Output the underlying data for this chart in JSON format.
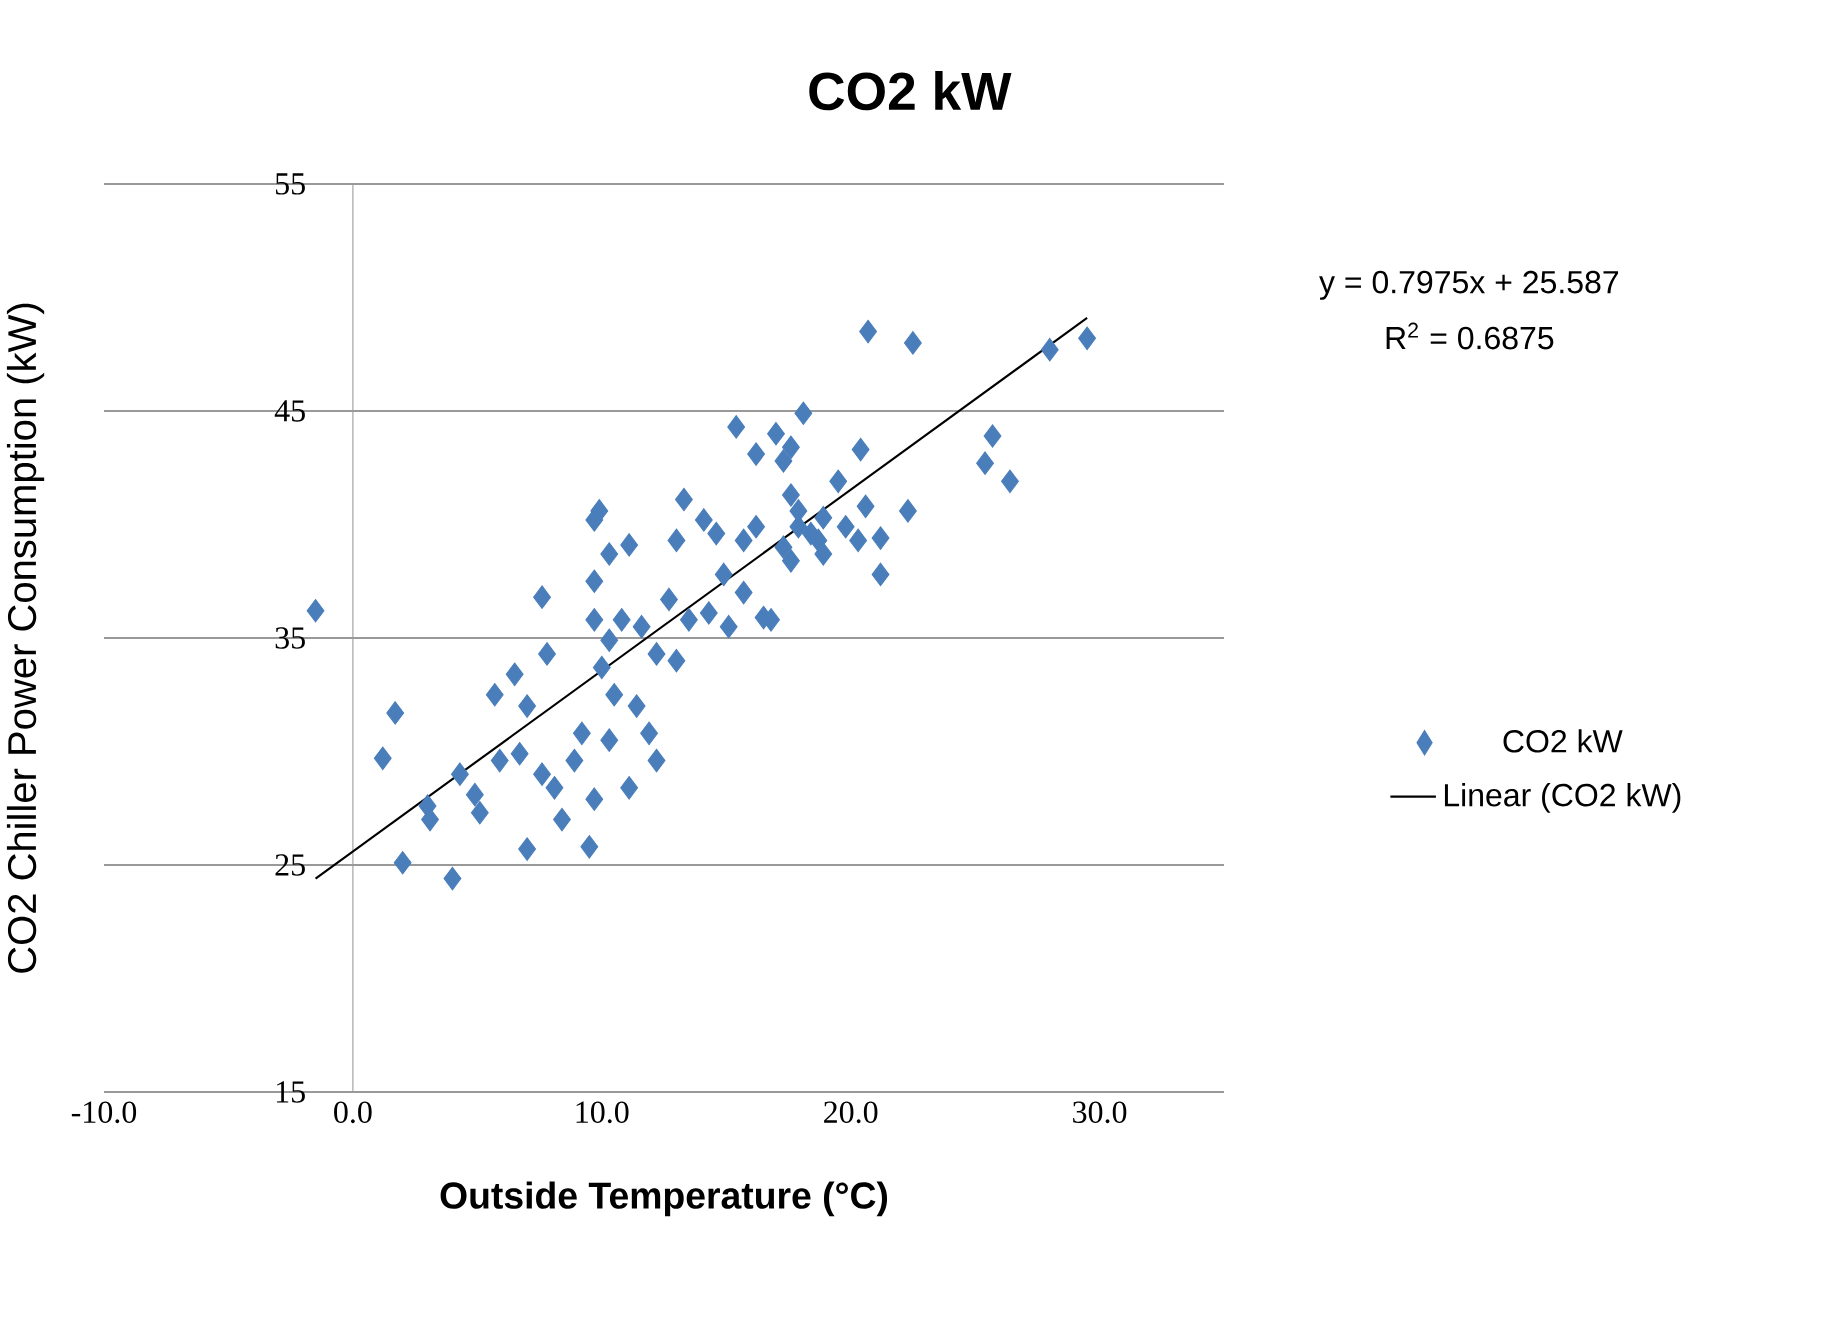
{
  "chart_data": {
    "type": "scatter",
    "title": "CO2 kW",
    "xlabel": "Outside Temperature (°C)",
    "ylabel": "CO2 Chiller Power Consumption (kW)",
    "xlim": [
      -10,
      35
    ],
    "ylim": [
      15,
      55
    ],
    "xticks": [
      {
        "value": -10,
        "label": "-10.0"
      },
      {
        "value": 0,
        "label": "0.0"
      },
      {
        "value": 10,
        "label": "10.0"
      },
      {
        "value": 20,
        "label": "20.0"
      },
      {
        "value": 30,
        "label": "30.0"
      }
    ],
    "yticks": [
      15,
      25,
      35,
      45,
      55
    ],
    "grid": "y",
    "legend": "right",
    "marker": "diamond",
    "annotations": [
      "y = 0.7975x + 25.587",
      "R$^{2}$ = 0.6875"
    ],
    "series": [
      {
        "name": "CO2 kW",
        "color": "#4a7ebb",
        "x": [
          -1.5,
          1.2,
          1.7,
          2.0,
          3.0,
          3.1,
          4.0,
          4.3,
          4.9,
          5.1,
          5.7,
          5.9,
          6.5,
          6.7,
          7.0,
          7.0,
          7.6,
          7.6,
          7.8,
          8.1,
          8.4,
          8.9,
          9.2,
          9.5,
          9.7,
          9.7,
          9.7,
          9.7,
          9.9,
          10.0,
          10.3,
          10.3,
          10.3,
          10.5,
          10.8,
          11.1,
          11.1,
          11.4,
          11.6,
          11.9,
          12.2,
          12.2,
          12.7,
          13.0,
          13.0,
          13.3,
          13.5,
          14.1,
          14.3,
          14.6,
          14.9,
          15.1,
          15.4,
          15.7,
          15.7,
          16.2,
          16.2,
          16.5,
          16.8,
          17.0,
          17.3,
          17.3,
          17.6,
          17.6,
          17.6,
          17.9,
          17.9,
          18.1,
          18.4,
          18.7,
          18.9,
          18.9,
          19.5,
          19.8,
          20.3,
          20.4,
          20.6,
          20.7,
          21.2,
          21.2,
          22.3,
          22.5,
          25.4,
          25.7,
          26.4,
          28.0,
          29.5
        ],
        "values": [
          36.2,
          29.7,
          31.7,
          25.1,
          27.6,
          27.0,
          24.4,
          29.0,
          28.1,
          27.3,
          32.5,
          29.6,
          33.4,
          29.9,
          32.0,
          25.7,
          36.8,
          29.0,
          34.3,
          28.4,
          27.0,
          29.6,
          30.8,
          25.8,
          27.9,
          35.8,
          37.5,
          40.2,
          40.6,
          33.7,
          30.5,
          34.9,
          38.7,
          32.5,
          35.8,
          28.4,
          39.1,
          32.0,
          35.5,
          30.8,
          29.6,
          34.3,
          36.7,
          34.0,
          39.3,
          41.1,
          35.8,
          40.2,
          36.1,
          39.6,
          37.8,
          35.5,
          44.3,
          37.0,
          39.3,
          43.1,
          39.9,
          35.9,
          35.8,
          44.0,
          39.0,
          42.8,
          43.4,
          41.3,
          38.4,
          40.6,
          39.9,
          44.9,
          39.6,
          39.3,
          40.3,
          38.7,
          41.9,
          39.9,
          39.3,
          43.3,
          40.8,
          48.5,
          39.4,
          37.8,
          40.6,
          48.0,
          42.7,
          43.9,
          41.9,
          47.7,
          48.2
        ]
      },
      {
        "name": "Linear (CO2 kW)",
        "type": "line",
        "marker": "none",
        "color": "#000000",
        "x": [
          -1.5,
          29.5
        ],
        "values": [
          24.4,
          49.1
        ]
      }
    ]
  }
}
